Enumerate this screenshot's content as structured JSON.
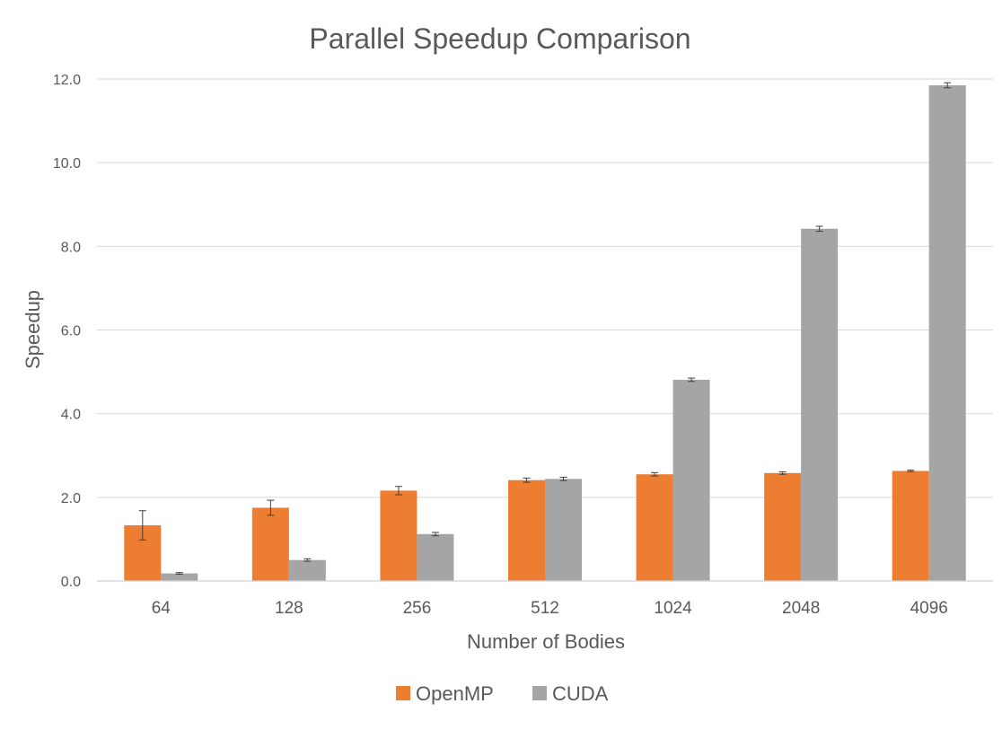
{
  "chart_data": {
    "type": "bar",
    "title": "Parallel Speedup Comparison",
    "xlabel": "Number of Bodies",
    "ylabel": "Speedup",
    "categories": [
      "64",
      "128",
      "256",
      "512",
      "1024",
      "2048",
      "4096"
    ],
    "series": [
      {
        "name": "OpenMP",
        "color": "#ED7D31",
        "values": [
          1.33,
          1.75,
          2.16,
          2.41,
          2.55,
          2.58,
          2.63
        ],
        "error": [
          0.35,
          0.18,
          0.1,
          0.05,
          0.04,
          0.03,
          0.02
        ]
      },
      {
        "name": "CUDA",
        "color": "#A5A5A5",
        "values": [
          0.18,
          0.5,
          1.12,
          2.44,
          4.81,
          8.42,
          11.85
        ],
        "error": [
          0.02,
          0.03,
          0.04,
          0.04,
          0.04,
          0.06,
          0.06
        ]
      }
    ],
    "ylim": [
      0,
      12
    ],
    "yticks": [
      "0.0",
      "2.0",
      "4.0",
      "6.0",
      "8.0",
      "10.0",
      "12.0"
    ],
    "grid": true,
    "legend_position": "bottom",
    "error_bars": true
  }
}
